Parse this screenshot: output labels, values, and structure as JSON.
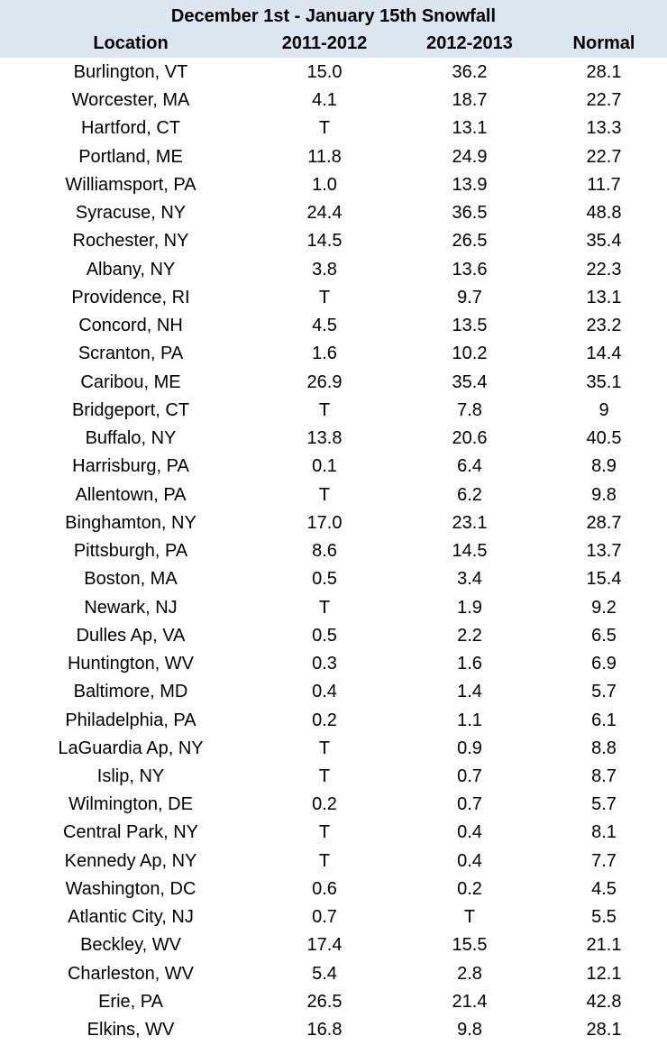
{
  "table": {
    "title": "December 1st - January 15th Snowfall",
    "columns": [
      "Location",
      "2011-2012",
      "2012-2013",
      "Normal"
    ],
    "rows": [
      [
        "Burlington, VT",
        "15.0",
        "36.2",
        "28.1"
      ],
      [
        "Worcester, MA",
        "4.1",
        "18.7",
        "22.7"
      ],
      [
        "Hartford, CT",
        "T",
        "13.1",
        "13.3"
      ],
      [
        "Portland, ME",
        "11.8",
        "24.9",
        "22.7"
      ],
      [
        "Williamsport, PA",
        "1.0",
        "13.9",
        "11.7"
      ],
      [
        "Syracuse, NY",
        "24.4",
        "36.5",
        "48.8"
      ],
      [
        "Rochester, NY",
        "14.5",
        "26.5",
        "35.4"
      ],
      [
        "Albany, NY",
        "3.8",
        "13.6",
        "22.3"
      ],
      [
        "Providence, RI",
        "T",
        "9.7",
        "13.1"
      ],
      [
        "Concord, NH",
        "4.5",
        "13.5",
        "23.2"
      ],
      [
        "Scranton, PA",
        "1.6",
        "10.2",
        "14.4"
      ],
      [
        "Caribou, ME",
        "26.9",
        "35.4",
        "35.1"
      ],
      [
        "Bridgeport, CT",
        "T",
        "7.8",
        "9"
      ],
      [
        "Buffalo, NY",
        "13.8",
        "20.6",
        "40.5"
      ],
      [
        "Harrisburg, PA",
        "0.1",
        "6.4",
        "8.9"
      ],
      [
        "Allentown, PA",
        "T",
        "6.2",
        "9.8"
      ],
      [
        "Binghamton, NY",
        "17.0",
        "23.1",
        "28.7"
      ],
      [
        "Pittsburgh, PA",
        "8.6",
        "14.5",
        "13.7"
      ],
      [
        "Boston, MA",
        "0.5",
        "3.4",
        "15.4"
      ],
      [
        "Newark, NJ",
        "T",
        "1.9",
        "9.2"
      ],
      [
        "Dulles Ap, VA",
        "0.5",
        "2.2",
        "6.5"
      ],
      [
        "Huntington, WV",
        "0.3",
        "1.6",
        "6.9"
      ],
      [
        "Baltimore, MD",
        "0.4",
        "1.4",
        "5.7"
      ],
      [
        "Philadelphia, PA",
        "0.2",
        "1.1",
        "6.1"
      ],
      [
        "LaGuardia Ap, NY",
        "T",
        "0.9",
        "8.8"
      ],
      [
        "Islip, NY",
        "T",
        "0.7",
        "8.7"
      ],
      [
        "Wilmington, DE",
        "0.2",
        "0.7",
        "5.7"
      ],
      [
        "Central Park, NY",
        "T",
        "0.4",
        "8.1"
      ],
      [
        "Kennedy Ap, NY",
        "T",
        "0.4",
        "7.7"
      ],
      [
        "Washington, DC",
        "0.6",
        "0.2",
        "4.5"
      ],
      [
        "Atlantic City, NJ",
        "0.7",
        "T",
        "5.5"
      ],
      [
        "Beckley, WV",
        "17.4",
        "15.5",
        "21.1"
      ],
      [
        "Charleston, WV",
        "5.4",
        "2.8",
        "12.1"
      ],
      [
        "Erie, PA",
        "26.5",
        "21.4",
        "42.8"
      ],
      [
        "Elkins, WV",
        "16.8",
        "9.8",
        "28.1"
      ]
    ]
  }
}
